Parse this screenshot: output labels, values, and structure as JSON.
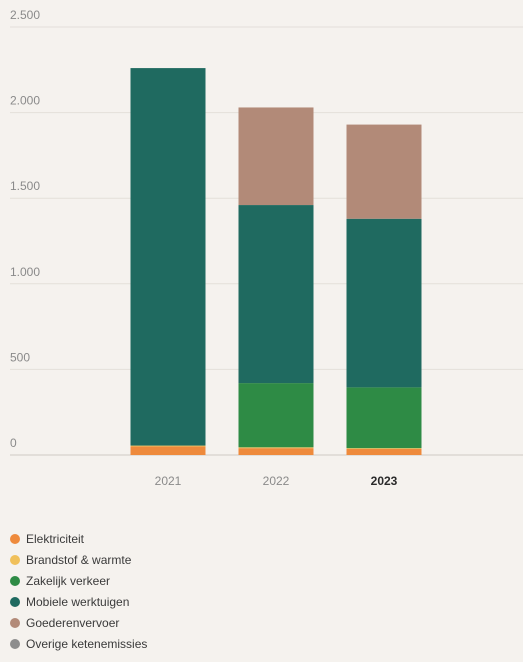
{
  "chart_data": {
    "type": "bar",
    "stacked": true,
    "categories": [
      "2021",
      "2022",
      "2023"
    ],
    "highlighted_category": "2023",
    "ylim": [
      0,
      2500
    ],
    "y_ticks": [
      {
        "value": 0,
        "label": "0"
      },
      {
        "value": 500,
        "label": "500"
      },
      {
        "value": 1000,
        "label": "1.000"
      },
      {
        "value": 1500,
        "label": "1.500"
      },
      {
        "value": 2000,
        "label": "2.000"
      },
      {
        "value": 2500,
        "label": "2.500"
      }
    ],
    "grid": true,
    "legend_position": "bottom-left",
    "series": [
      {
        "name": "Elektriciteit",
        "color": "#ee8a3c",
        "values": [
          50,
          40,
          35
        ]
      },
      {
        "name": "Brandstof & warmte",
        "color": "#f0c05a",
        "values": [
          5,
          5,
          5
        ]
      },
      {
        "name": "Zakelijk verkeer",
        "color": "#2e8b45",
        "values": [
          0,
          375,
          355
        ]
      },
      {
        "name": "Mobiele werktuigen",
        "color": "#1f6a60",
        "values": [
          2205,
          1040,
          985
        ]
      },
      {
        "name": "Goederenvervoer",
        "color": "#b28a78",
        "values": [
          0,
          570,
          550
        ]
      },
      {
        "name": "Overige ketenemissies",
        "color": "#8d8d8d",
        "values": [
          0,
          0,
          0
        ]
      }
    ]
  }
}
